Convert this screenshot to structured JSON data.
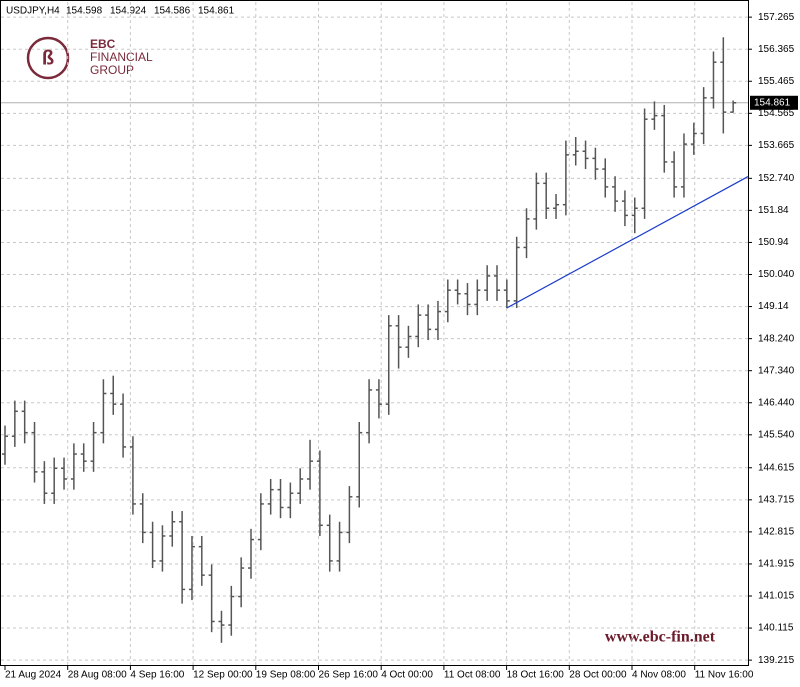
{
  "chart_data": {
    "type": "ohlc",
    "symbol": "USDJPY,H4",
    "categories": [
      "21 Aug 2024",
      "28 Aug 08:00",
      "4 Sep 16:00",
      "12 Sep 00:00",
      "19 Sep 08:00",
      "26 Sep 16:00",
      "4 Oct 00:00",
      "11 Oct 08:00",
      "18 Oct 16:00",
      "28 Oct 00:00",
      "4 Nov 08:00",
      "11 Nov 16:00"
    ],
    "open": [
      145.0,
      145.5,
      146.2,
      145.6,
      144.5,
      143.9,
      144.6,
      144.3,
      145.0,
      144.8,
      145.6,
      146.7,
      146.4,
      145.2,
      143.6,
      142.8,
      142.0,
      142.7,
      143.1,
      141.2,
      142.4,
      141.6,
      140.3,
      140.2,
      141.0,
      141.8,
      142.6,
      143.6,
      144.0,
      143.5,
      143.9,
      144.3,
      144.8,
      143.0,
      142.0,
      142.8,
      143.8,
      145.6,
      146.8,
      146.4,
      148.6,
      148.0,
      148.3,
      148.9,
      148.5,
      149.0,
      149.6,
      149.5,
      149.2,
      149.6,
      150.0,
      149.6,
      149.3,
      150.8,
      151.6,
      152.6,
      151.9,
      152.0,
      153.4,
      153.5,
      153.3,
      153.0,
      152.5,
      152.1,
      151.7,
      151.9,
      154.4,
      154.5,
      153.2,
      152.5,
      153.7,
      154.0,
      155.0,
      156.0,
      154.598
    ],
    "high": [
      145.8,
      146.5,
      146.5,
      145.9,
      144.8,
      144.9,
      144.9,
      145.3,
      145.3,
      145.9,
      147.1,
      147.2,
      146.7,
      145.5,
      143.9,
      143.1,
      143.0,
      143.4,
      143.4,
      142.7,
      142.7,
      141.9,
      140.6,
      141.3,
      142.1,
      142.9,
      143.9,
      144.3,
      144.3,
      144.2,
      144.6,
      145.4,
      145.1,
      143.3,
      143.1,
      144.1,
      145.9,
      147.1,
      147.1,
      148.9,
      148.9,
      148.6,
      149.2,
      149.2,
      149.3,
      149.9,
      149.9,
      149.8,
      149.9,
      150.3,
      150.3,
      149.9,
      151.1,
      151.9,
      152.9,
      152.9,
      152.3,
      153.8,
      153.9,
      153.8,
      153.6,
      153.3,
      152.8,
      152.4,
      152.2,
      154.7,
      154.9,
      154.8,
      153.5,
      154.0,
      154.3,
      155.3,
      156.3,
      156.7,
      154.924
    ],
    "low": [
      144.7,
      145.2,
      145.3,
      144.2,
      143.6,
      143.6,
      144.0,
      144.0,
      144.5,
      144.5,
      145.3,
      146.1,
      144.9,
      143.3,
      142.5,
      141.8,
      141.7,
      142.4,
      140.8,
      140.9,
      141.3,
      140.0,
      139.7,
      139.9,
      140.7,
      141.5,
      142.3,
      143.3,
      143.2,
      143.2,
      143.6,
      144.0,
      142.7,
      141.7,
      141.7,
      142.5,
      143.5,
      145.3,
      146.0,
      146.1,
      147.4,
      147.7,
      148.0,
      148.2,
      148.2,
      148.7,
      149.2,
      148.9,
      148.9,
      149.3,
      149.3,
      149.1,
      149.1,
      150.5,
      151.3,
      151.6,
      151.6,
      151.7,
      153.1,
      153.0,
      152.7,
      152.2,
      151.8,
      151.4,
      151.2,
      151.6,
      154.1,
      152.9,
      152.2,
      152.2,
      153.4,
      153.7,
      154.7,
      154.0,
      154.586
    ],
    "close": [
      145.5,
      146.2,
      145.6,
      144.5,
      143.9,
      144.6,
      144.3,
      145.0,
      144.8,
      145.6,
      146.7,
      146.4,
      145.2,
      143.6,
      142.8,
      142.0,
      142.7,
      143.1,
      141.2,
      142.4,
      141.6,
      140.3,
      140.2,
      141.0,
      141.8,
      142.6,
      143.6,
      144.0,
      143.5,
      143.9,
      144.3,
      144.8,
      143.0,
      142.0,
      142.8,
      143.8,
      145.6,
      146.8,
      146.4,
      148.6,
      148.0,
      148.3,
      148.9,
      148.5,
      149.0,
      149.6,
      149.5,
      149.2,
      149.6,
      150.0,
      149.6,
      149.3,
      150.8,
      151.6,
      152.6,
      151.9,
      152.0,
      153.4,
      153.5,
      153.3,
      153.0,
      152.5,
      152.1,
      151.7,
      151.9,
      154.4,
      154.5,
      153.2,
      152.5,
      153.7,
      154.0,
      155.0,
      156.0,
      154.598,
      154.861
    ],
    "color": "#555555",
    "ylim": [
      139.05,
      157.69
    ],
    "yticks": [
      157.265,
      156.365,
      155.465,
      154.565,
      153.665,
      {
        "value": 152.74,
        "label": "152.740"
      },
      151.84,
      150.94,
      {
        "value": 150.04,
        "label": "150.040"
      },
      149.14,
      {
        "value": 148.24,
        "label": "148.240"
      },
      {
        "value": 147.34,
        "label": "147.340"
      },
      {
        "value": 146.44,
        "label": "146.440"
      },
      {
        "value": 145.54,
        "label": "145.540"
      },
      144.615,
      143.715,
      142.815,
      141.915,
      141.015,
      140.115,
      139.215
    ],
    "grid": true,
    "trendline": {
      "values": [
        149.1,
        152.79
      ],
      "color": "#1a3ccc"
    }
  },
  "branding": {
    "logo": [
      "EBC",
      "FINANCIAL",
      "GROUP"
    ],
    "watermark": "www.ebc-fin.net"
  }
}
